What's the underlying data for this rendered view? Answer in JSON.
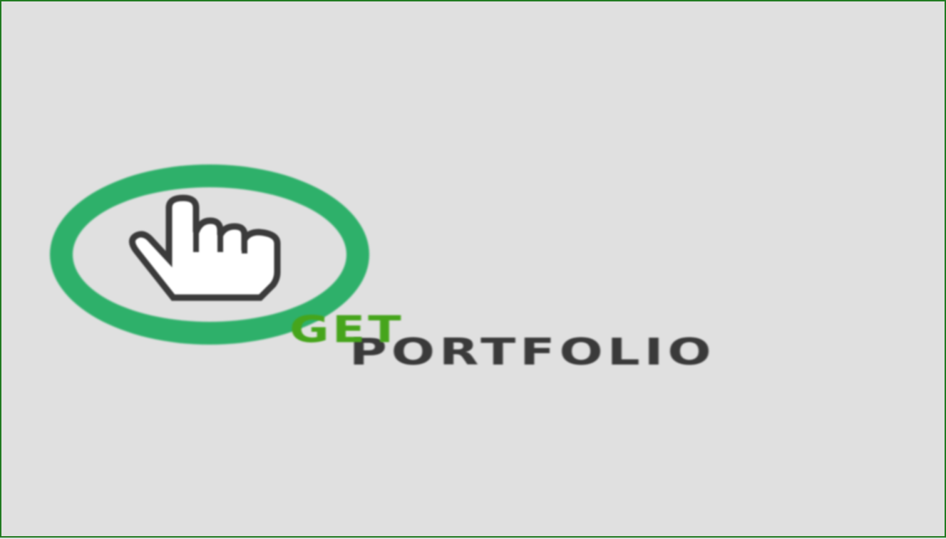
{
  "logo": {
    "word_top": "GET",
    "word_bottom": "PORTFOLIO",
    "icon": "pointing-hand-icon",
    "colors": {
      "ring": "#2eb06a",
      "word_top": "#46a51c",
      "word_bottom": "#3a3a3a",
      "background": "#e0e0e0",
      "frame": "#1f7a1f"
    }
  }
}
